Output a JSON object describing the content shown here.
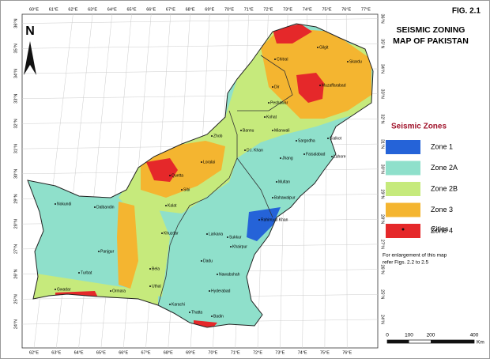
{
  "header": {
    "figure": "FIG. 2.1",
    "title_lines": [
      "SEISMIC ZONING",
      "MAP OF PAKISTAN"
    ]
  },
  "north_label": "N",
  "legend": {
    "title": "Seismic Zones",
    "zones": [
      {
        "label": "Zone 1",
        "color": "#2563d8"
      },
      {
        "label": "Zone 2A",
        "color": "#8fe0cb"
      },
      {
        "label": "Zone 2B",
        "color": "#c6ea7c"
      },
      {
        "label": "Zone 3",
        "color": "#f4b530"
      },
      {
        "label": "Zone 4",
        "color": "#e5282a"
      }
    ],
    "cities_label": "Cities"
  },
  "note_lines": [
    "For enlargement of this map",
    "refer Figs. 2.2 to 2.5"
  ],
  "scale": {
    "labels": [
      0,
      100,
      200,
      400
    ],
    "unit": "Km"
  },
  "graticule": {
    "top": [
      "60°E",
      "61°E",
      "62°E",
      "63°E",
      "64°E",
      "65°E",
      "66°E",
      "67°E",
      "68°E",
      "69°E",
      "70°E",
      "71°E",
      "72°E",
      "73°E",
      "74°E",
      "75°E",
      "76°E",
      "77°E"
    ],
    "bottom": [
      "62°E",
      "63°E",
      "64°E",
      "65°E",
      "66°E",
      "67°E",
      "68°E",
      "69°E",
      "70°E",
      "71°E",
      "72°E",
      "73°E",
      "74°E",
      "75°E",
      "76°E"
    ],
    "left": [
      "24°N",
      "25°N",
      "26°N",
      "27°N",
      "28°N",
      "29°N",
      "30°N",
      "31°N",
      "32°N",
      "33°N",
      "34°N",
      "35°N",
      "36°N"
    ],
    "right": [
      "24°N",
      "25°N",
      "26°N",
      "27°N",
      "28°N",
      "29°N",
      "30°N",
      "31°N",
      "32°N",
      "33°N",
      "34°N",
      "35°N",
      "36°N"
    ]
  },
  "cities": [
    "Gilgit",
    "Skardu",
    "Chitral",
    "Dir",
    "Muzaffarabad",
    "Peshawar",
    "Kohat",
    "Bannu",
    "Mianwali",
    "D.I. Khan",
    "Sargodha",
    "Faisalabad",
    "Lahore",
    "Sialkot",
    "Jhang",
    "Multan",
    "Bahawalpur",
    "Rahimyar Khan",
    "Sukkur",
    "Larkana",
    "Khairpur",
    "Dadu",
    "Nawabshah",
    "Hyderabad",
    "Karachi",
    "Thatta",
    "Badin",
    "Quetta",
    "Zhob",
    "Loralai",
    "Sibi",
    "Kalat",
    "Khuzdar",
    "Bela",
    "Uthal",
    "Panjgur",
    "Turbat",
    "Gwadar",
    "Ormara",
    "Nokundi",
    "Dalbandin"
  ]
}
